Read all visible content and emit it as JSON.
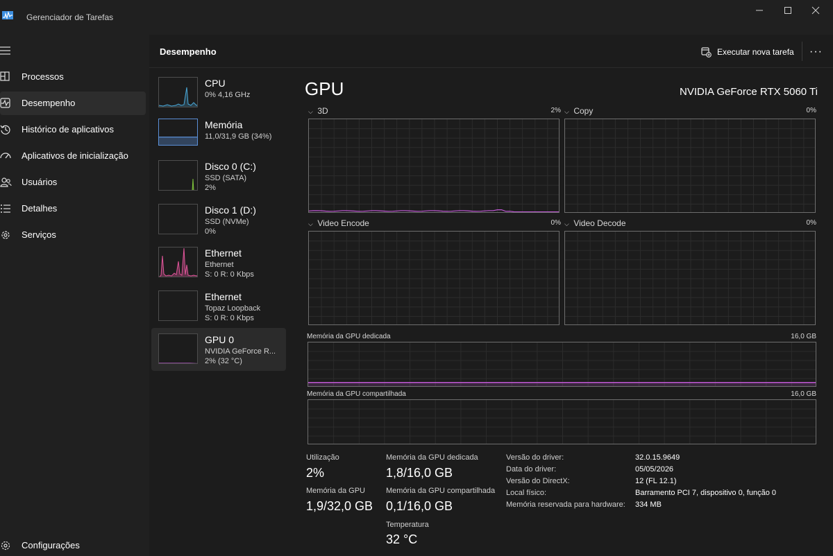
{
  "window": {
    "title": "Gerenciador de Tarefas"
  },
  "sidebar": {
    "items": [
      {
        "label": "Processos",
        "icon": "processes-icon"
      },
      {
        "label": "Desempenho",
        "icon": "performance-icon",
        "active": true
      },
      {
        "label": "Histórico de aplicativos",
        "icon": "history-icon"
      },
      {
        "label": "Aplicativos de inicialização",
        "icon": "startup-icon"
      },
      {
        "label": "Usuários",
        "icon": "users-icon"
      },
      {
        "label": "Detalhes",
        "icon": "details-icon"
      },
      {
        "label": "Serviços",
        "icon": "services-icon"
      }
    ],
    "settings_label": "Configurações"
  },
  "header": {
    "title": "Desempenho",
    "run_task_label": "Executar nova tarefa",
    "more_label": "···"
  },
  "devices": [
    {
      "name": "CPU",
      "line1": "0% 4,16 GHz",
      "line2": "",
      "color": "#4aa8d8"
    },
    {
      "name": "Memória",
      "line1": "11,0/31,9 GB (34%)",
      "line2": "",
      "color": "#5b8fd6",
      "fill": 0.34
    },
    {
      "name": "Disco 0 (C:)",
      "line1": "SSD (SATA)",
      "line2": "2%",
      "color": "#7cbf3b"
    },
    {
      "name": "Disco 1 (D:)",
      "line1": "SSD (NVMe)",
      "line2": "0%",
      "color": "#7cbf3b"
    },
    {
      "name": "Ethernet",
      "line1": "Ethernet",
      "line2": "S: 0 R: 0 Kbps",
      "color": "#e0559a"
    },
    {
      "name": "Ethernet",
      "line1": "Topaz Loopback",
      "line2": "S: 0 R: 0 Kbps",
      "color": "#e0559a"
    },
    {
      "name": "GPU 0",
      "line1": "NVIDIA GeForce R...",
      "line2": "2%  (32 °C)",
      "color": "#c159d6",
      "active": true
    }
  ],
  "main": {
    "title": "GPU",
    "model": "NVIDIA GeForce RTX 5060 Ti",
    "engines": [
      {
        "label": "3D",
        "pct": "2%"
      },
      {
        "label": "Copy",
        "pct": "0%"
      },
      {
        "label": "Video Encode",
        "pct": "0%"
      },
      {
        "label": "Video Decode",
        "pct": "0%"
      }
    ],
    "dedicated_label": "Memória da GPU dedicada",
    "dedicated_max": "16,0 GB",
    "shared_label": "Memória da GPU compartilhada",
    "shared_max": "16,0 GB",
    "graph_color": "#c159d6"
  },
  "stats": {
    "utilization_label": "Utilização",
    "utilization_value": "2%",
    "gpu_memory_label": "Memória da GPU",
    "gpu_memory_value": "1,9/32,0 GB",
    "dedicated_label": "Memória da GPU dedicada",
    "dedicated_value": "1,8/16,0 GB",
    "shared_label": "Memória da GPU compartilhada",
    "shared_value": "0,1/16,0 GB",
    "temperature_label": "Temperatura",
    "temperature_value": "32 °C"
  },
  "details": [
    {
      "label": "Versão do driver:",
      "value": "32.0.15.9649"
    },
    {
      "label": "Data do driver:",
      "value": "05/05/2026"
    },
    {
      "label": "Versão do DirectX:",
      "value": "12 (FL 12.1)"
    },
    {
      "label": "Local físico:",
      "value": "Barramento PCI 7, dispositivo 0, função 0"
    },
    {
      "label": "Memória reservada para hardware:",
      "value": "334 MB"
    }
  ]
}
